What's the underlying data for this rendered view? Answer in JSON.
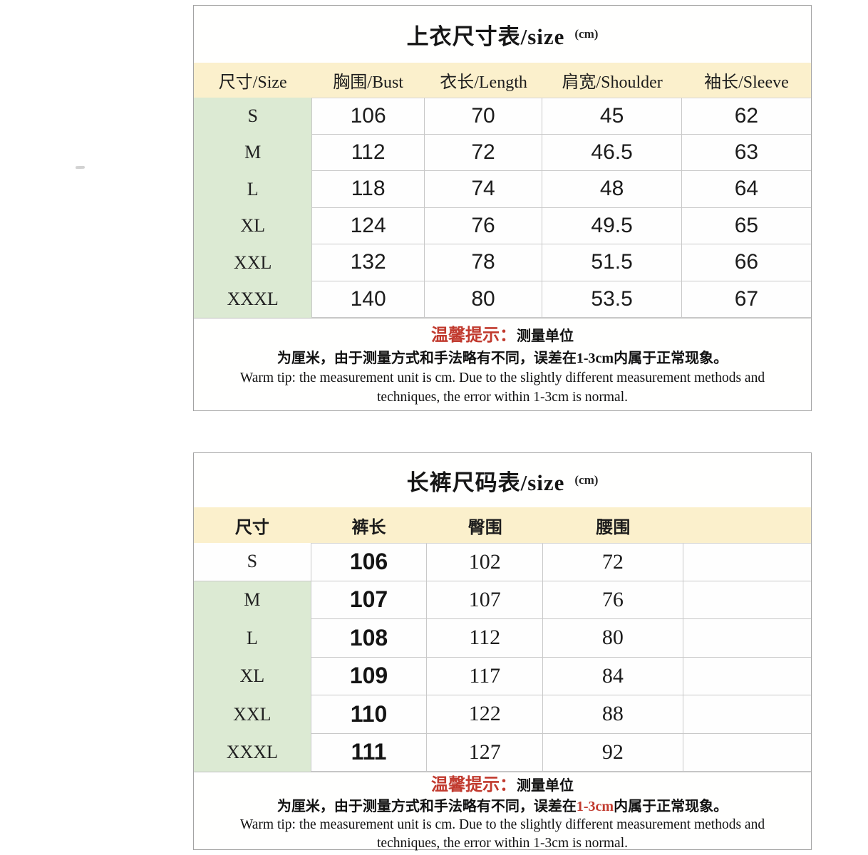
{
  "colors": {
    "header_bg": "#fbf0cc",
    "size_col_bg": "#dcead3",
    "grid_line": "#c9c9c9",
    "tip_red": "#c13a2e",
    "card_border": "#a3a3a3"
  },
  "table1": {
    "title_main": "上衣尺寸表/size",
    "title_unit": "(cm)",
    "headers": [
      "尺寸/Size",
      "胸围/Bust",
      "衣长/Length",
      "肩宽/Shoulder",
      "袖长/Sleeve"
    ],
    "rows": [
      {
        "size": "S",
        "bust": "106",
        "length": "70",
        "shoulder": "45",
        "sleeve": "62"
      },
      {
        "size": "M",
        "bust": "112",
        "length": "72",
        "shoulder": "46.5",
        "sleeve": "63"
      },
      {
        "size": "L",
        "bust": "118",
        "length": "74",
        "shoulder": "48",
        "sleeve": "64"
      },
      {
        "size": "XL",
        "bust": "124",
        "length": "76",
        "shoulder": "49.5",
        "sleeve": "65"
      },
      {
        "size": "XXL",
        "bust": "132",
        "length": "78",
        "shoulder": "51.5",
        "sleeve": "66"
      },
      {
        "size": "XXXL",
        "bust": "140",
        "length": "80",
        "shoulder": "53.5",
        "sleeve": "67"
      }
    ],
    "tip": {
      "title_red": "温馨提示：",
      "title_black": "测量单位",
      "cn_line": "为厘米，由于测量方式和手法略有不同，误差在1-3cm内属于正常现象。",
      "en_line1": "Warm tip: the measurement unit is cm. Due to the slightly different measurement methods and",
      "en_line2": "techniques, the error within 1-3cm is normal."
    }
  },
  "table2": {
    "title_main": "长裤尺码表/size",
    "title_unit": "(cm)",
    "headers": [
      "尺寸",
      "裤长",
      "臀围",
      "腰围",
      ""
    ],
    "rows": [
      {
        "size": "S",
        "length": "106",
        "hip": "102",
        "waist": "72"
      },
      {
        "size": "M",
        "length": "107",
        "hip": "107",
        "waist": "76"
      },
      {
        "size": "L",
        "length": "108",
        "hip": "112",
        "waist": "80"
      },
      {
        "size": "XL",
        "length": "109",
        "hip": "117",
        "waist": "84"
      },
      {
        "size": "XXL",
        "length": "110",
        "hip": "122",
        "waist": "88"
      },
      {
        "size": "XXXL",
        "length": "111",
        "hip": "127",
        "waist": "92"
      }
    ],
    "tip": {
      "title_red": "温馨提示：",
      "title_black": "测量单位",
      "cn_pre": "为厘米，由于测量方式和手法略有不同，误差在",
      "cn_red": "1-3cm",
      "cn_post": "内属于正常现象。",
      "en_line1": "Warm tip: the measurement unit is cm. Due to the slightly different measurement methods and",
      "en_line2": "techniques, the error within 1-3cm is normal."
    }
  }
}
